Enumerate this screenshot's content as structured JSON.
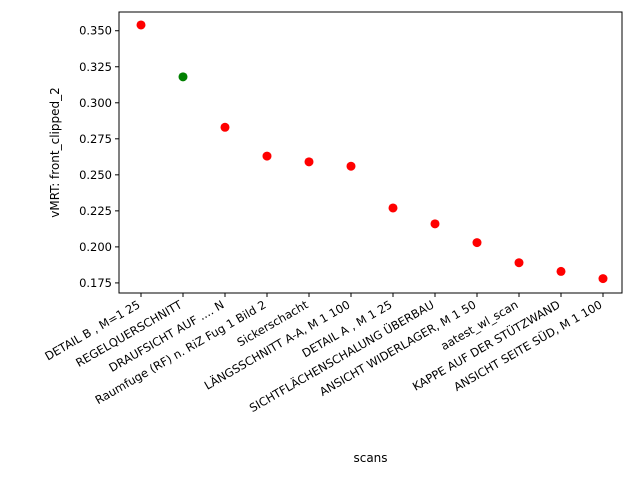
{
  "chart_data": {
    "type": "scatter",
    "title": "",
    "xlabel": "scans",
    "ylabel": "vMRT: front_clipped_2",
    "ylim": [
      0.168,
      0.363
    ],
    "yticks": [
      0.175,
      0.2,
      0.225,
      0.25,
      0.275,
      0.3,
      0.325,
      0.35
    ],
    "grid": false,
    "categories": [
      "DETAIL  B  , M=1 25",
      "REGELQUERSCHNITT",
      "DRAUFSICHT AUF .... N",
      "Raumfuge (RF) n. RiZ Fug 1 Bild 2",
      "Sickerschacht",
      "LÄNGSSCHNITT A-A, M 1 100",
      "DETAIL  A  , M 1 25",
      "SICHTFLÄCHENSCHALUNG   ÜBERBAU",
      "ANSICHT WIDERLAGER, M 1 50",
      "aatest_wl_scan",
      "KAPPE AUF DER STÜTZWAND",
      "ANSICHT SEITE SÜD, M 1  100"
    ],
    "values": [
      0.354,
      0.318,
      0.283,
      0.263,
      0.259,
      0.256,
      0.227,
      0.216,
      0.203,
      0.189,
      0.183,
      0.178
    ],
    "colors": [
      "#ff0000",
      "#008000",
      "#ff0000",
      "#ff0000",
      "#ff0000",
      "#ff0000",
      "#ff0000",
      "#ff0000",
      "#ff0000",
      "#ff0000",
      "#ff0000",
      "#ff0000"
    ]
  }
}
